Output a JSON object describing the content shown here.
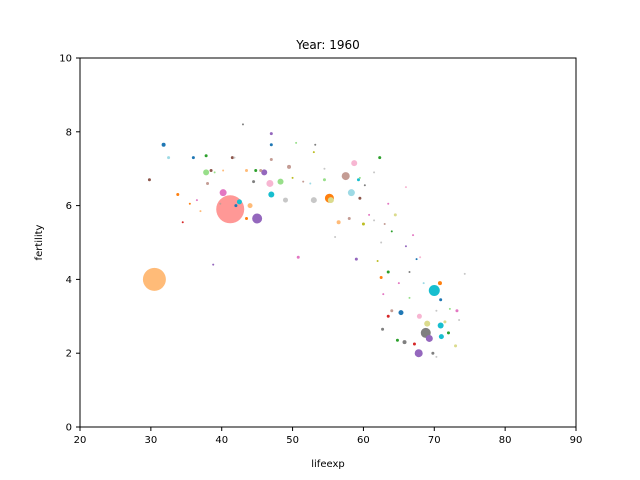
{
  "chart_data": {
    "type": "scatter",
    "title": "Year: 1960",
    "xlabel": "lifeexp",
    "ylabel": "fertility",
    "xlim": [
      20,
      90
    ],
    "ylim": [
      0,
      10
    ],
    "xticks": [
      20,
      30,
      40,
      50,
      60,
      70,
      80,
      90
    ],
    "yticks": [
      0,
      2,
      4,
      6,
      8,
      10
    ],
    "grid": false,
    "legend": "none",
    "points": [
      {
        "x": 30.5,
        "y": 4.0,
        "size": 23,
        "color": "#ffbb78"
      },
      {
        "x": 41.2,
        "y": 5.9,
        "size": 28,
        "color": "#ff9896"
      },
      {
        "x": 45.0,
        "y": 5.65,
        "size": 10,
        "color": "#9467bd"
      },
      {
        "x": 40.2,
        "y": 6.35,
        "size": 7,
        "color": "#e377c2"
      },
      {
        "x": 55.2,
        "y": 6.2,
        "size": 9,
        "color": "#ff7f0e"
      },
      {
        "x": 55.4,
        "y": 6.15,
        "size": 6,
        "color": "#dbdb8d"
      },
      {
        "x": 57.5,
        "y": 6.8,
        "size": 8,
        "color": "#c49c94"
      },
      {
        "x": 58.3,
        "y": 6.35,
        "size": 7,
        "color": "#9edae5"
      },
      {
        "x": 58.7,
        "y": 7.15,
        "size": 6,
        "color": "#f7b6d2"
      },
      {
        "x": 53.0,
        "y": 6.15,
        "size": 6,
        "color": "#c7c7c7"
      },
      {
        "x": 49.0,
        "y": 6.15,
        "size": 5,
        "color": "#c7c7c7"
      },
      {
        "x": 47.0,
        "y": 6.3,
        "size": 6,
        "color": "#17becf"
      },
      {
        "x": 46.8,
        "y": 6.6,
        "size": 7,
        "color": "#f7b6d2"
      },
      {
        "x": 46.0,
        "y": 6.9,
        "size": 6,
        "color": "#9467bd"
      },
      {
        "x": 48.3,
        "y": 6.65,
        "size": 6,
        "color": "#98df8a"
      },
      {
        "x": 37.8,
        "y": 6.9,
        "size": 6,
        "color": "#98df8a"
      },
      {
        "x": 44.0,
        "y": 6.0,
        "size": 5,
        "color": "#ffbb78"
      },
      {
        "x": 42.5,
        "y": 6.1,
        "size": 5,
        "color": "#17becf"
      },
      {
        "x": 31.8,
        "y": 7.65,
        "size": 4,
        "color": "#1f77b4"
      },
      {
        "x": 32.5,
        "y": 7.3,
        "size": 3,
        "color": "#9edae5"
      },
      {
        "x": 29.8,
        "y": 6.7,
        "size": 3,
        "color": "#8c564b"
      },
      {
        "x": 36.0,
        "y": 7.3,
        "size": 3,
        "color": "#1f77b4"
      },
      {
        "x": 37.8,
        "y": 7.35,
        "size": 3,
        "color": "#2ca02c"
      },
      {
        "x": 38.5,
        "y": 6.95,
        "size": 3,
        "color": "#8c564b"
      },
      {
        "x": 41.5,
        "y": 7.3,
        "size": 3,
        "color": "#8c564b"
      },
      {
        "x": 43.0,
        "y": 8.2,
        "size": 2,
        "color": "#7f7f7f"
      },
      {
        "x": 47.0,
        "y": 7.95,
        "size": 3,
        "color": "#9467bd"
      },
      {
        "x": 47.0,
        "y": 7.65,
        "size": 3,
        "color": "#1f77b4"
      },
      {
        "x": 47.0,
        "y": 7.25,
        "size": 3,
        "color": "#c49c94"
      },
      {
        "x": 49.5,
        "y": 7.05,
        "size": 4,
        "color": "#c49c94"
      },
      {
        "x": 50.5,
        "y": 7.7,
        "size": 2,
        "color": "#98df8a"
      },
      {
        "x": 53.2,
        "y": 7.65,
        "size": 2,
        "color": "#7f7f7f"
      },
      {
        "x": 54.5,
        "y": 6.7,
        "size": 3,
        "color": "#98df8a"
      },
      {
        "x": 56.5,
        "y": 5.55,
        "size": 4,
        "color": "#ffbb78"
      },
      {
        "x": 58.0,
        "y": 5.65,
        "size": 3,
        "color": "#c49c94"
      },
      {
        "x": 59.5,
        "y": 6.2,
        "size": 3,
        "color": "#8c564b"
      },
      {
        "x": 59.3,
        "y": 6.7,
        "size": 3,
        "color": "#17becf"
      },
      {
        "x": 60.0,
        "y": 5.5,
        "size": 3,
        "color": "#bcbd22"
      },
      {
        "x": 62.3,
        "y": 7.3,
        "size": 3,
        "color": "#2ca02c"
      },
      {
        "x": 63.5,
        "y": 6.05,
        "size": 2,
        "color": "#e377c2"
      },
      {
        "x": 64.5,
        "y": 5.75,
        "size": 3,
        "color": "#dbdb8d"
      },
      {
        "x": 66.0,
        "y": 6.5,
        "size": 2,
        "color": "#f7b6d2"
      },
      {
        "x": 59.0,
        "y": 4.55,
        "size": 3,
        "color": "#9467bd"
      },
      {
        "x": 50.8,
        "y": 4.6,
        "size": 3,
        "color": "#e377c2"
      },
      {
        "x": 38.8,
        "y": 4.4,
        "size": 2,
        "color": "#9467bd"
      },
      {
        "x": 33.8,
        "y": 6.3,
        "size": 3,
        "color": "#ff7f0e"
      },
      {
        "x": 34.5,
        "y": 5.55,
        "size": 2,
        "color": "#d62728"
      },
      {
        "x": 36.5,
        "y": 6.15,
        "size": 2,
        "color": "#e377c2"
      },
      {
        "x": 38.0,
        "y": 6.6,
        "size": 3,
        "color": "#c49c94"
      },
      {
        "x": 44.5,
        "y": 6.65,
        "size": 3,
        "color": "#7f7f7f"
      },
      {
        "x": 52.5,
        "y": 6.6,
        "size": 2,
        "color": "#9edae5"
      },
      {
        "x": 63.5,
        "y": 4.2,
        "size": 3,
        "color": "#2ca02c"
      },
      {
        "x": 62.5,
        "y": 4.05,
        "size": 3,
        "color": "#ff7f0e"
      },
      {
        "x": 62.8,
        "y": 3.6,
        "size": 2,
        "color": "#e377c2"
      },
      {
        "x": 62.7,
        "y": 2.65,
        "size": 3,
        "color": "#7f7f7f"
      },
      {
        "x": 63.5,
        "y": 3.0,
        "size": 3,
        "color": "#d62728"
      },
      {
        "x": 64.0,
        "y": 3.15,
        "size": 3,
        "color": "#c49c94"
      },
      {
        "x": 65.3,
        "y": 3.1,
        "size": 5,
        "color": "#1f77b4"
      },
      {
        "x": 66.5,
        "y": 3.5,
        "size": 2,
        "color": "#98df8a"
      },
      {
        "x": 64.8,
        "y": 2.35,
        "size": 3,
        "color": "#2ca02c"
      },
      {
        "x": 65.8,
        "y": 2.3,
        "size": 4,
        "color": "#7f7f7f"
      },
      {
        "x": 67.8,
        "y": 2.0,
        "size": 8,
        "color": "#9467bd"
      },
      {
        "x": 67.9,
        "y": 3.0,
        "size": 5,
        "color": "#f7b6d2"
      },
      {
        "x": 68.8,
        "y": 2.55,
        "size": 10,
        "color": "#7f7f7f"
      },
      {
        "x": 69.3,
        "y": 2.4,
        "size": 7,
        "color": "#9467bd"
      },
      {
        "x": 69.0,
        "y": 2.8,
        "size": 6,
        "color": "#dbdb8d"
      },
      {
        "x": 70.0,
        "y": 3.7,
        "size": 11,
        "color": "#17becf"
      },
      {
        "x": 70.8,
        "y": 3.9,
        "size": 4,
        "color": "#ff7f0e"
      },
      {
        "x": 70.9,
        "y": 3.45,
        "size": 3,
        "color": "#1f77b4"
      },
      {
        "x": 70.9,
        "y": 2.75,
        "size": 6,
        "color": "#17becf"
      },
      {
        "x": 71.0,
        "y": 2.45,
        "size": 5,
        "color": "#17becf"
      },
      {
        "x": 71.5,
        "y": 2.85,
        "size": 3,
        "color": "#dbdb8d"
      },
      {
        "x": 72.0,
        "y": 2.55,
        "size": 3,
        "color": "#2ca02c"
      },
      {
        "x": 73.2,
        "y": 3.15,
        "size": 3,
        "color": "#e377c2"
      },
      {
        "x": 73.0,
        "y": 2.2,
        "size": 3,
        "color": "#dbdb8d"
      },
      {
        "x": 69.8,
        "y": 2.0,
        "size": 3,
        "color": "#7f7f7f"
      },
      {
        "x": 70.3,
        "y": 1.9,
        "size": 2,
        "color": "#c7c7c7"
      },
      {
        "x": 74.3,
        "y": 4.15,
        "size": 2,
        "color": "#c7c7c7"
      },
      {
        "x": 73.5,
        "y": 2.9,
        "size": 2,
        "color": "#c7c7c7"
      },
      {
        "x": 68.0,
        "y": 4.6,
        "size": 2,
        "color": "#f7b6d2"
      },
      {
        "x": 67.5,
        "y": 4.55,
        "size": 2,
        "color": "#1f77b4"
      },
      {
        "x": 67.0,
        "y": 5.2,
        "size": 2,
        "color": "#e377c2"
      },
      {
        "x": 66.0,
        "y": 4.9,
        "size": 2,
        "color": "#9467bd"
      },
      {
        "x": 62.5,
        "y": 5.0,
        "size": 2,
        "color": "#c7c7c7"
      },
      {
        "x": 56.0,
        "y": 5.15,
        "size": 2,
        "color": "#c7c7c7"
      },
      {
        "x": 60.2,
        "y": 6.55,
        "size": 2,
        "color": "#7f7f7f"
      },
      {
        "x": 61.5,
        "y": 6.9,
        "size": 2,
        "color": "#c7c7c7"
      },
      {
        "x": 59.5,
        "y": 6.75,
        "size": 2,
        "color": "#98df8a"
      },
      {
        "x": 45.5,
        "y": 6.95,
        "size": 3,
        "color": "#c49c94"
      },
      {
        "x": 44.8,
        "y": 6.95,
        "size": 3,
        "color": "#2ca02c"
      },
      {
        "x": 43.5,
        "y": 6.95,
        "size": 3,
        "color": "#ffbb78"
      },
      {
        "x": 41.8,
        "y": 7.3,
        "size": 2,
        "color": "#c7c7c7"
      },
      {
        "x": 40.2,
        "y": 6.95,
        "size": 2,
        "color": "#ffbb78"
      },
      {
        "x": 39.0,
        "y": 6.9,
        "size": 2,
        "color": "#98df8a"
      },
      {
        "x": 42.0,
        "y": 6.0,
        "size": 3,
        "color": "#1f77b4"
      },
      {
        "x": 43.5,
        "y": 5.65,
        "size": 3,
        "color": "#ff7f0e"
      },
      {
        "x": 39.8,
        "y": 6.05,
        "size": 2,
        "color": "#c49c94"
      },
      {
        "x": 37.0,
        "y": 5.85,
        "size": 2,
        "color": "#ffbb78"
      },
      {
        "x": 35.5,
        "y": 6.05,
        "size": 2,
        "color": "#ff7f0e"
      },
      {
        "x": 50.0,
        "y": 6.75,
        "size": 2,
        "color": "#bcbd22"
      },
      {
        "x": 51.5,
        "y": 6.65,
        "size": 2,
        "color": "#c49c94"
      },
      {
        "x": 53.0,
        "y": 7.45,
        "size": 2,
        "color": "#bcbd22"
      },
      {
        "x": 54.5,
        "y": 7.0,
        "size": 2,
        "color": "#c7c7c7"
      },
      {
        "x": 60.8,
        "y": 5.75,
        "size": 2,
        "color": "#e377c2"
      },
      {
        "x": 61.5,
        "y": 5.6,
        "size": 2,
        "color": "#c7c7c7"
      },
      {
        "x": 63.0,
        "y": 5.5,
        "size": 2,
        "color": "#c49c94"
      },
      {
        "x": 64.0,
        "y": 5.3,
        "size": 2,
        "color": "#2ca02c"
      },
      {
        "x": 62.0,
        "y": 4.5,
        "size": 2,
        "color": "#bcbd22"
      },
      {
        "x": 66.5,
        "y": 4.2,
        "size": 2,
        "color": "#7f7f7f"
      },
      {
        "x": 65.0,
        "y": 3.9,
        "size": 2,
        "color": "#e377c2"
      },
      {
        "x": 68.5,
        "y": 3.9,
        "size": 2,
        "color": "#9edae5"
      },
      {
        "x": 70.3,
        "y": 3.15,
        "size": 2,
        "color": "#c7c7c7"
      },
      {
        "x": 72.2,
        "y": 3.2,
        "size": 2,
        "color": "#98df8a"
      },
      {
        "x": 67.2,
        "y": 2.25,
        "size": 3,
        "color": "#d62728"
      }
    ]
  }
}
